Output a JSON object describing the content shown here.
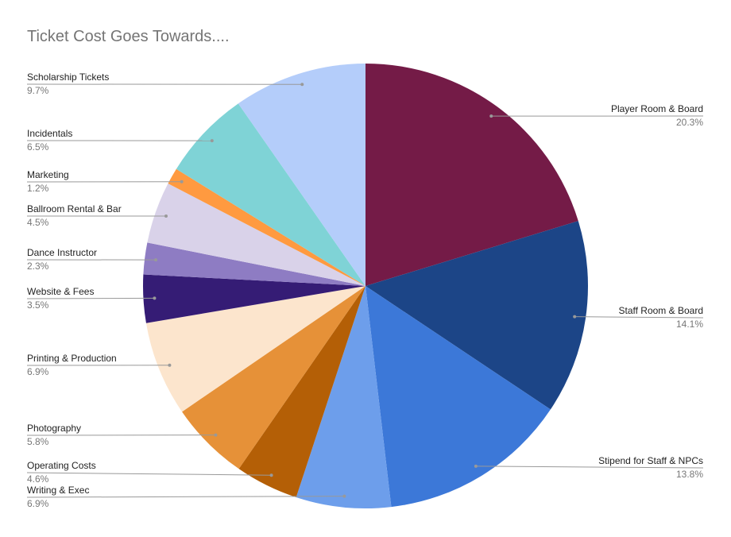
{
  "chart_data": {
    "type": "pie",
    "title": "Ticket Cost Goes Towards....",
    "categories": [
      "Player Room & Board",
      "Staff Room & Board",
      "Stipend for Staff & NPCs",
      "Writing & Exec",
      "Operating Costs",
      "Photography",
      "Printing & Production",
      "Website & Fees",
      "Dance Instructor",
      "Ballroom Rental & Bar",
      "Marketing",
      "Incidentals",
      "Scholarship Tickets"
    ],
    "values": [
      20.3,
      14.1,
      13.8,
      6.9,
      4.6,
      5.8,
      6.9,
      3.5,
      2.3,
      4.5,
      1.2,
      6.5,
      9.7
    ],
    "value_labels": [
      "20.3%",
      "14.1%",
      "13.8%",
      "6.9%",
      "4.6%",
      "5.8%",
      "6.9%",
      "3.5%",
      "2.3%",
      "4.5%",
      "1.2%",
      "6.5%",
      "9.7%"
    ],
    "colors": [
      "#741b47",
      "#1c4587",
      "#3c78d8",
      "#6d9eeb",
      "#b45f06",
      "#e69138",
      "#fce5cd",
      "#351c75",
      "#8e7cc3",
      "#d9d2e9",
      "#ff9a40",
      "#7fd3d6",
      "#b4cdfa"
    ]
  }
}
